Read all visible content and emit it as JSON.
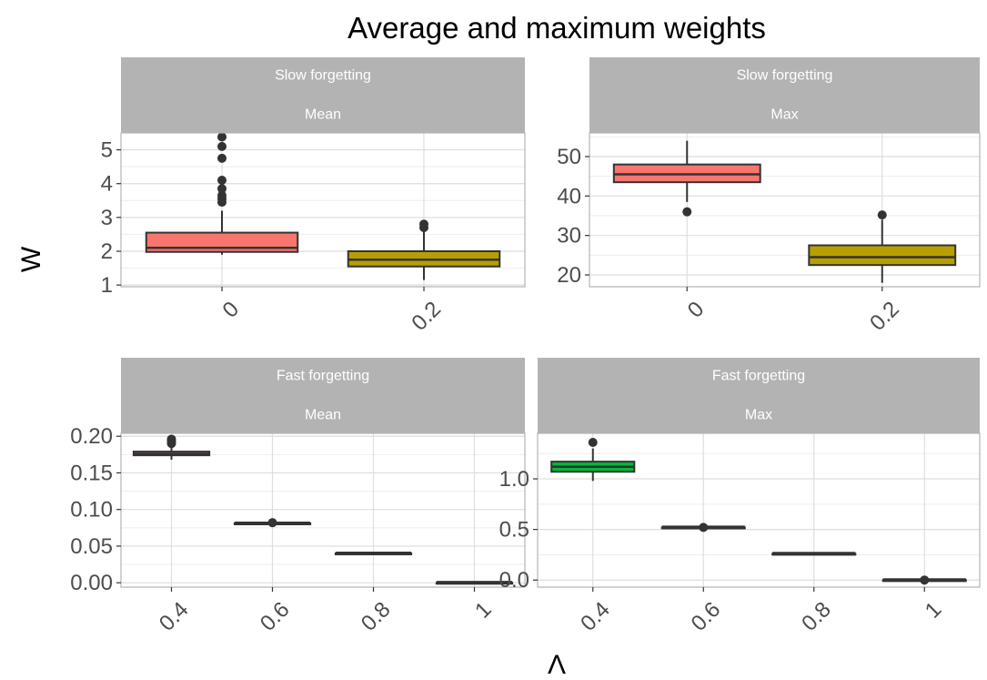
{
  "title": "Average and maximum weights",
  "ylabel": "W",
  "xlabel": "Λ",
  "colors": {
    "strip_bg": "#b3b3b3",
    "panel_border": "#b3b3b3",
    "grid_major": "#dedede",
    "grid_minor": "#ededed",
    "box_edge": "#333333",
    "fill_red": "#f8766d",
    "fill_olive": "#b79f00",
    "fill_green": "#00ba38"
  },
  "chart_data": [
    {
      "type": "box",
      "strip": [
        "Slow forgetting",
        "Mean"
      ],
      "categories": [
        "0",
        "0.2"
      ],
      "ylim": [
        0.95,
        5.5
      ],
      "yticks": [
        1,
        2,
        3,
        4,
        5
      ],
      "ytick_labels": [
        "1",
        "2",
        "3",
        "4",
        "5"
      ],
      "boxes": [
        {
          "category": "0",
          "whisker_low": 1.9,
          "q1": 1.98,
          "median": 2.1,
          "q3": 2.55,
          "whisker_high": 3.2,
          "outliers": [
            3.45,
            3.55,
            3.65,
            3.85,
            4.1,
            4.75,
            5.1,
            5.38
          ],
          "fill": "#f8766d"
        },
        {
          "category": "0.2",
          "whisker_low": 1.15,
          "q1": 1.55,
          "median": 1.75,
          "q3": 2.0,
          "whisker_high": 2.6,
          "outliers": [
            2.7,
            2.8
          ],
          "fill": "#b79f00"
        }
      ]
    },
    {
      "type": "box",
      "strip": [
        "Slow forgetting",
        "Max"
      ],
      "categories": [
        "0",
        "0.2"
      ],
      "ylim": [
        17,
        56
      ],
      "yticks": [
        20,
        30,
        40,
        50
      ],
      "ytick_labels": [
        "20",
        "30",
        "40",
        "50"
      ],
      "boxes": [
        {
          "category": "0",
          "whisker_low": 38.5,
          "q1": 43.5,
          "median": 45.5,
          "q3": 48.0,
          "whisker_high": 54.0,
          "outliers": [
            36.0
          ],
          "fill": "#f8766d"
        },
        {
          "category": "0.2",
          "whisker_low": 18.0,
          "q1": 22.5,
          "median": 24.5,
          "q3": 27.5,
          "whisker_high": 34.0,
          "outliers": [
            35.2
          ],
          "fill": "#b79f00"
        }
      ]
    },
    {
      "type": "box",
      "strip": [
        "Fast forgetting",
        "Mean"
      ],
      "categories": [
        "0.4",
        "0.6",
        "0.8",
        "1"
      ],
      "ylim": [
        -0.006,
        0.204
      ],
      "yticks": [
        0,
        0.05,
        0.1,
        0.15,
        0.2
      ],
      "ytick_labels": [
        "0.00",
        "0.05",
        "0.10",
        "0.15",
        "0.20"
      ],
      "boxes": [
        {
          "category": "0.4",
          "whisker_low": 0.168,
          "q1": 0.174,
          "median": 0.176,
          "q3": 0.179,
          "whisker_high": 0.186,
          "outliers": [
            0.19,
            0.193,
            0.196
          ],
          "fill": "#f8766d"
        },
        {
          "category": "0.6",
          "whisker_low": 0.081,
          "q1": 0.081,
          "median": 0.081,
          "q3": 0.081,
          "whisker_high": 0.081,
          "outliers": [
            0.082
          ],
          "fill": "#b79f00"
        },
        {
          "category": "0.8",
          "whisker_low": 0.04,
          "q1": 0.04,
          "median": 0.04,
          "q3": 0.04,
          "whisker_high": 0.04,
          "outliers": [],
          "fill": "#00ba38"
        },
        {
          "category": "1",
          "whisker_low": 0.0,
          "q1": 0.0,
          "median": 0.0,
          "q3": 0.0,
          "whisker_high": 0.0,
          "outliers": [],
          "fill": "#619cff"
        }
      ]
    },
    {
      "type": "box",
      "strip": [
        "Fast forgetting",
        "Max"
      ],
      "categories": [
        "0.4",
        "0.6",
        "0.8",
        "1"
      ],
      "ylim": [
        -0.07,
        1.45
      ],
      "yticks": [
        0,
        0.5,
        1.0
      ],
      "ytick_labels": [
        "0.0",
        "0.5",
        "1.0"
      ],
      "boxes": [
        {
          "category": "0.4",
          "whisker_low": 0.98,
          "q1": 1.07,
          "median": 1.12,
          "q3": 1.17,
          "whisker_high": 1.3,
          "outliers": [
            1.36
          ],
          "fill": "#00ba38"
        },
        {
          "category": "0.6",
          "whisker_low": 0.52,
          "q1": 0.52,
          "median": 0.52,
          "q3": 0.52,
          "whisker_high": 0.52,
          "outliers": [
            0.52
          ],
          "fill": "#b79f00"
        },
        {
          "category": "0.8",
          "whisker_low": 0.26,
          "q1": 0.26,
          "median": 0.26,
          "q3": 0.26,
          "whisker_high": 0.26,
          "outliers": [],
          "fill": "#00ba38"
        },
        {
          "category": "1",
          "whisker_low": 0.0,
          "q1": 0.0,
          "median": 0.0,
          "q3": 0.0,
          "whisker_high": 0.0,
          "outliers": [
            0.0
          ],
          "fill": "#619cff"
        }
      ]
    }
  ]
}
